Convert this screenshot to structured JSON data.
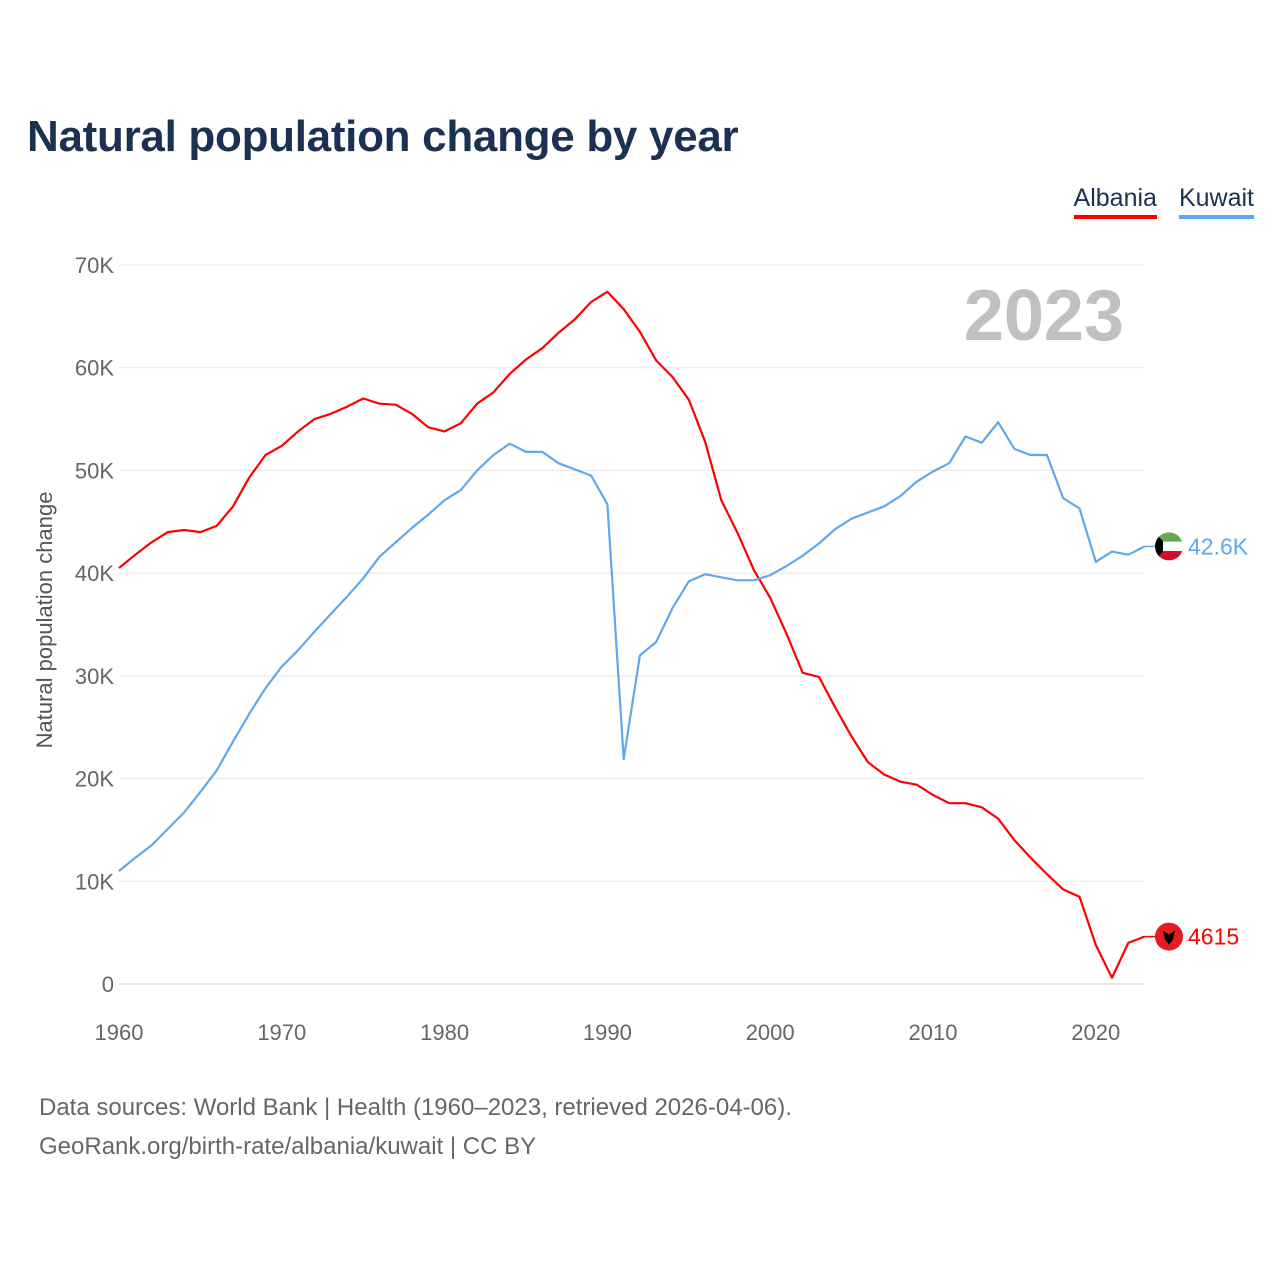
{
  "title": "Natural population change by year",
  "year_label": "2023",
  "source_line1": "Data sources: World Bank | Health (1960–2023, retrieved 2026-04-06).",
  "source_line2": "GeoRank.org/birth-rate/albania/kuwait | CC BY",
  "chart_data": {
    "type": "line",
    "title": "Natural population change by year",
    "xlabel": "",
    "ylabel": "Natural population change",
    "xlim": [
      1960,
      2023
    ],
    "ylim": [
      0,
      70000
    ],
    "x_ticks": [
      "1960",
      "1970",
      "1980",
      "1990",
      "2000",
      "2010",
      "2020"
    ],
    "y_ticks": [
      "0",
      "10K",
      "20K",
      "30K",
      "40K",
      "50K",
      "60K",
      "70K"
    ],
    "grid": true,
    "legend_position": "top-right",
    "x": [
      1960,
      1961,
      1962,
      1963,
      1964,
      1965,
      1966,
      1967,
      1968,
      1969,
      1970,
      1971,
      1972,
      1973,
      1974,
      1975,
      1976,
      1977,
      1978,
      1979,
      1980,
      1981,
      1982,
      1983,
      1984,
      1985,
      1986,
      1987,
      1988,
      1989,
      1990,
      1991,
      1992,
      1993,
      1994,
      1995,
      1996,
      1997,
      1998,
      1999,
      2000,
      2001,
      2002,
      2003,
      2004,
      2005,
      2006,
      2007,
      2008,
      2009,
      2010,
      2011,
      2012,
      2013,
      2014,
      2015,
      2016,
      2017,
      2018,
      2019,
      2020,
      2021,
      2022,
      2023
    ],
    "series": [
      {
        "name": "Albania",
        "color": "#ff0000",
        "end_label": "4615",
        "values": [
          40500,
          41800,
          43000,
          44000,
          44200,
          44000,
          44600,
          46500,
          49300,
          51500,
          52400,
          53800,
          55000,
          55500,
          56200,
          57000,
          56500,
          56400,
          55500,
          54200,
          53800,
          54600,
          56500,
          57600,
          59400,
          60800,
          61900,
          63400,
          64700,
          66400,
          67400,
          65700,
          63500,
          60700,
          59100,
          56900,
          52800,
          47100,
          43900,
          40300,
          37600,
          34100,
          30300,
          29900,
          26900,
          24100,
          21600,
          20400,
          19700,
          19400,
          18400,
          17600,
          17600,
          17200,
          16100,
          14000,
          12300,
          10700,
          9200,
          8500,
          3800,
          600,
          4000,
          4615
        ]
      },
      {
        "name": "Kuwait",
        "color": "#5fa8ee",
        "end_label": "42.6K",
        "values": [
          11000,
          12300,
          13500,
          15100,
          16700,
          18700,
          20800,
          23600,
          26300,
          28800,
          30900,
          32500,
          34300,
          36000,
          37700,
          39500,
          41600,
          43000,
          44400,
          45700,
          47100,
          48100,
          50000,
          51500,
          52600,
          51800,
          51800,
          50700,
          50100,
          49500,
          46700,
          21900,
          32000,
          33300,
          36600,
          39200,
          39900,
          39600,
          39300,
          39300,
          39800,
          40700,
          41700,
          42900,
          44300,
          45300,
          45900,
          46500,
          47500,
          48900,
          49900,
          50700,
          53300,
          52700,
          54700,
          52100,
          51500,
          51500,
          47300,
          46300,
          41100,
          42100,
          41800,
          42600
        ]
      }
    ]
  }
}
